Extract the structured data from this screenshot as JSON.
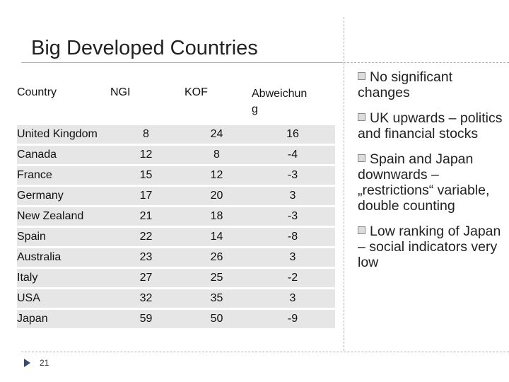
{
  "title": "Big Developed Countries",
  "table": {
    "headers": {
      "country": "Country",
      "ngi": "NGI",
      "kof": "KOF",
      "abweichung_line1": "Abweichun",
      "abweichung_line2": "g"
    },
    "rows": [
      {
        "country": "United Kingdom",
        "ngi": "8",
        "kof": "24",
        "abw": "16"
      },
      {
        "country": "Canada",
        "ngi": "12",
        "kof": "8",
        "abw": "-4"
      },
      {
        "country": "France",
        "ngi": "15",
        "kof": "12",
        "abw": "-3"
      },
      {
        "country": "Germany",
        "ngi": "17",
        "kof": "20",
        "abw": "3"
      },
      {
        "country": "New Zealand",
        "ngi": "21",
        "kof": "18",
        "abw": "-3"
      },
      {
        "country": "Spain",
        "ngi": "22",
        "kof": "14",
        "abw": "-8"
      },
      {
        "country": "Australia",
        "ngi": "23",
        "kof": "26",
        "abw": "3"
      },
      {
        "country": "Italy",
        "ngi": "27",
        "kof": "25",
        "abw": "-2"
      },
      {
        "country": "USA",
        "ngi": "32",
        "kof": "35",
        "abw": "3"
      },
      {
        "country": "Japan",
        "ngi": "59",
        "kof": "50",
        "abw": "-9"
      }
    ]
  },
  "bullets": [
    "No significant changes",
    "UK upwards – politics and financial stocks",
    "Spain  and Japan downwards – „restrictions“ variable, double counting",
    "Low ranking of Japan – social indicators very low"
  ],
  "footer": {
    "page_number": "21"
  }
}
